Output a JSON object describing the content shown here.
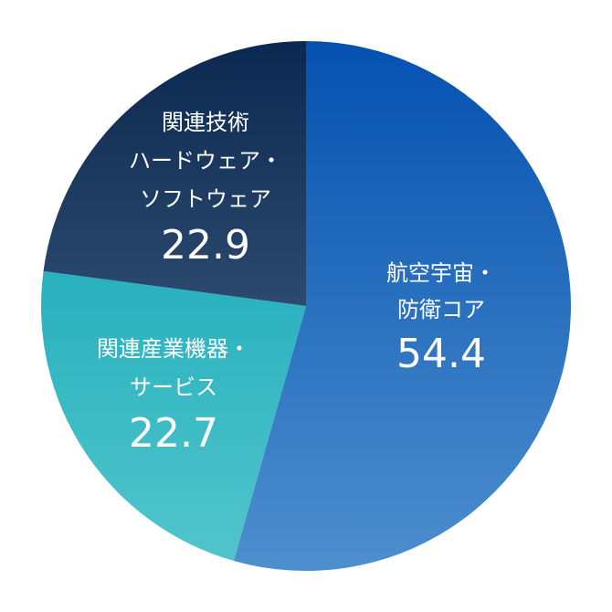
{
  "chart_data": {
    "type": "pie",
    "categories": [
      [
        "航空宇宙・",
        "防衛コア"
      ],
      [
        "関連産業機器・",
        "サービス"
      ],
      [
        "関連技術",
        "ハードウェア・",
        "ソフトウェア"
      ]
    ],
    "values": [
      54.4,
      22.7,
      22.9
    ],
    "colors": [
      [
        "#0551b0",
        "#4d8fce"
      ],
      [
        "#07a0b2",
        "#52c6cc"
      ],
      [
        "#0b2850",
        "#4d6c8c"
      ]
    ],
    "start_angle": 0,
    "direction": "clockwise"
  }
}
